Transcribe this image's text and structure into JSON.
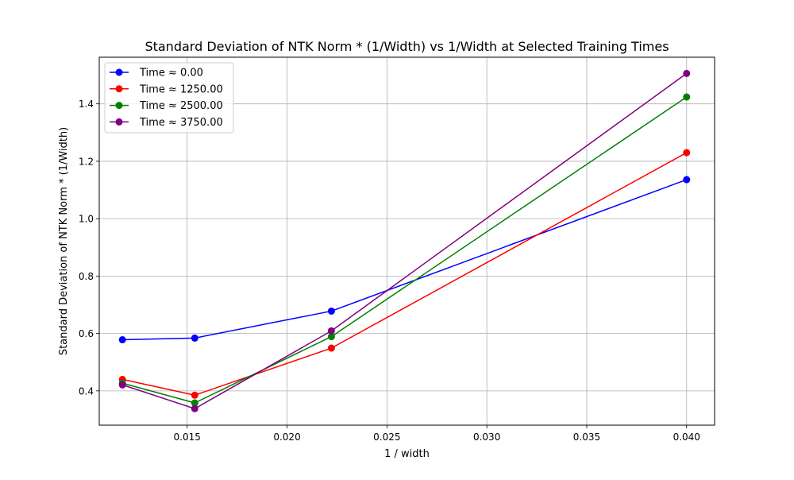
{
  "chart_data": {
    "type": "line",
    "title": "Standard Deviation of NTK Norm * (1/Width) vs 1/Width at Selected Training Times",
    "xlabel": "1 / width",
    "ylabel": "Standard Deviation of NTK Norm * (1/Width)",
    "xlim": [
      0.0106,
      0.0414
    ],
    "ylim": [
      0.2805,
      1.5625
    ],
    "x_ticks": [
      0.015,
      0.02,
      0.025,
      0.03,
      0.035,
      0.04
    ],
    "x_tick_labels": [
      "0.015",
      "0.020",
      "0.025",
      "0.030",
      "0.035",
      "0.040"
    ],
    "y_ticks": [
      0.4,
      0.6,
      0.8,
      1.0,
      1.2,
      1.4
    ],
    "y_tick_labels": [
      "0.4",
      "0.6",
      "0.8",
      "1.0",
      "1.2",
      "1.4"
    ],
    "grid": true,
    "legend_position": "upper-left",
    "x": [
      0.01176,
      0.01538,
      0.02222,
      0.04
    ],
    "series": [
      {
        "name": "Time ≈ 0.00",
        "color": "#0000ff",
        "marker": "circle",
        "values": [
          0.578,
          0.584,
          0.678,
          1.136
        ]
      },
      {
        "name": "Time ≈ 1250.00",
        "color": "#ff0000",
        "marker": "circle",
        "values": [
          0.44,
          0.385,
          0.549,
          1.23
        ]
      },
      {
        "name": "Time ≈ 2500.00",
        "color": "#008000",
        "marker": "circle",
        "values": [
          0.427,
          0.358,
          0.589,
          1.424
        ]
      },
      {
        "name": "Time ≈ 3750.00",
        "color": "#800080",
        "marker": "circle",
        "values": [
          0.421,
          0.338,
          0.609,
          1.506
        ]
      }
    ]
  }
}
